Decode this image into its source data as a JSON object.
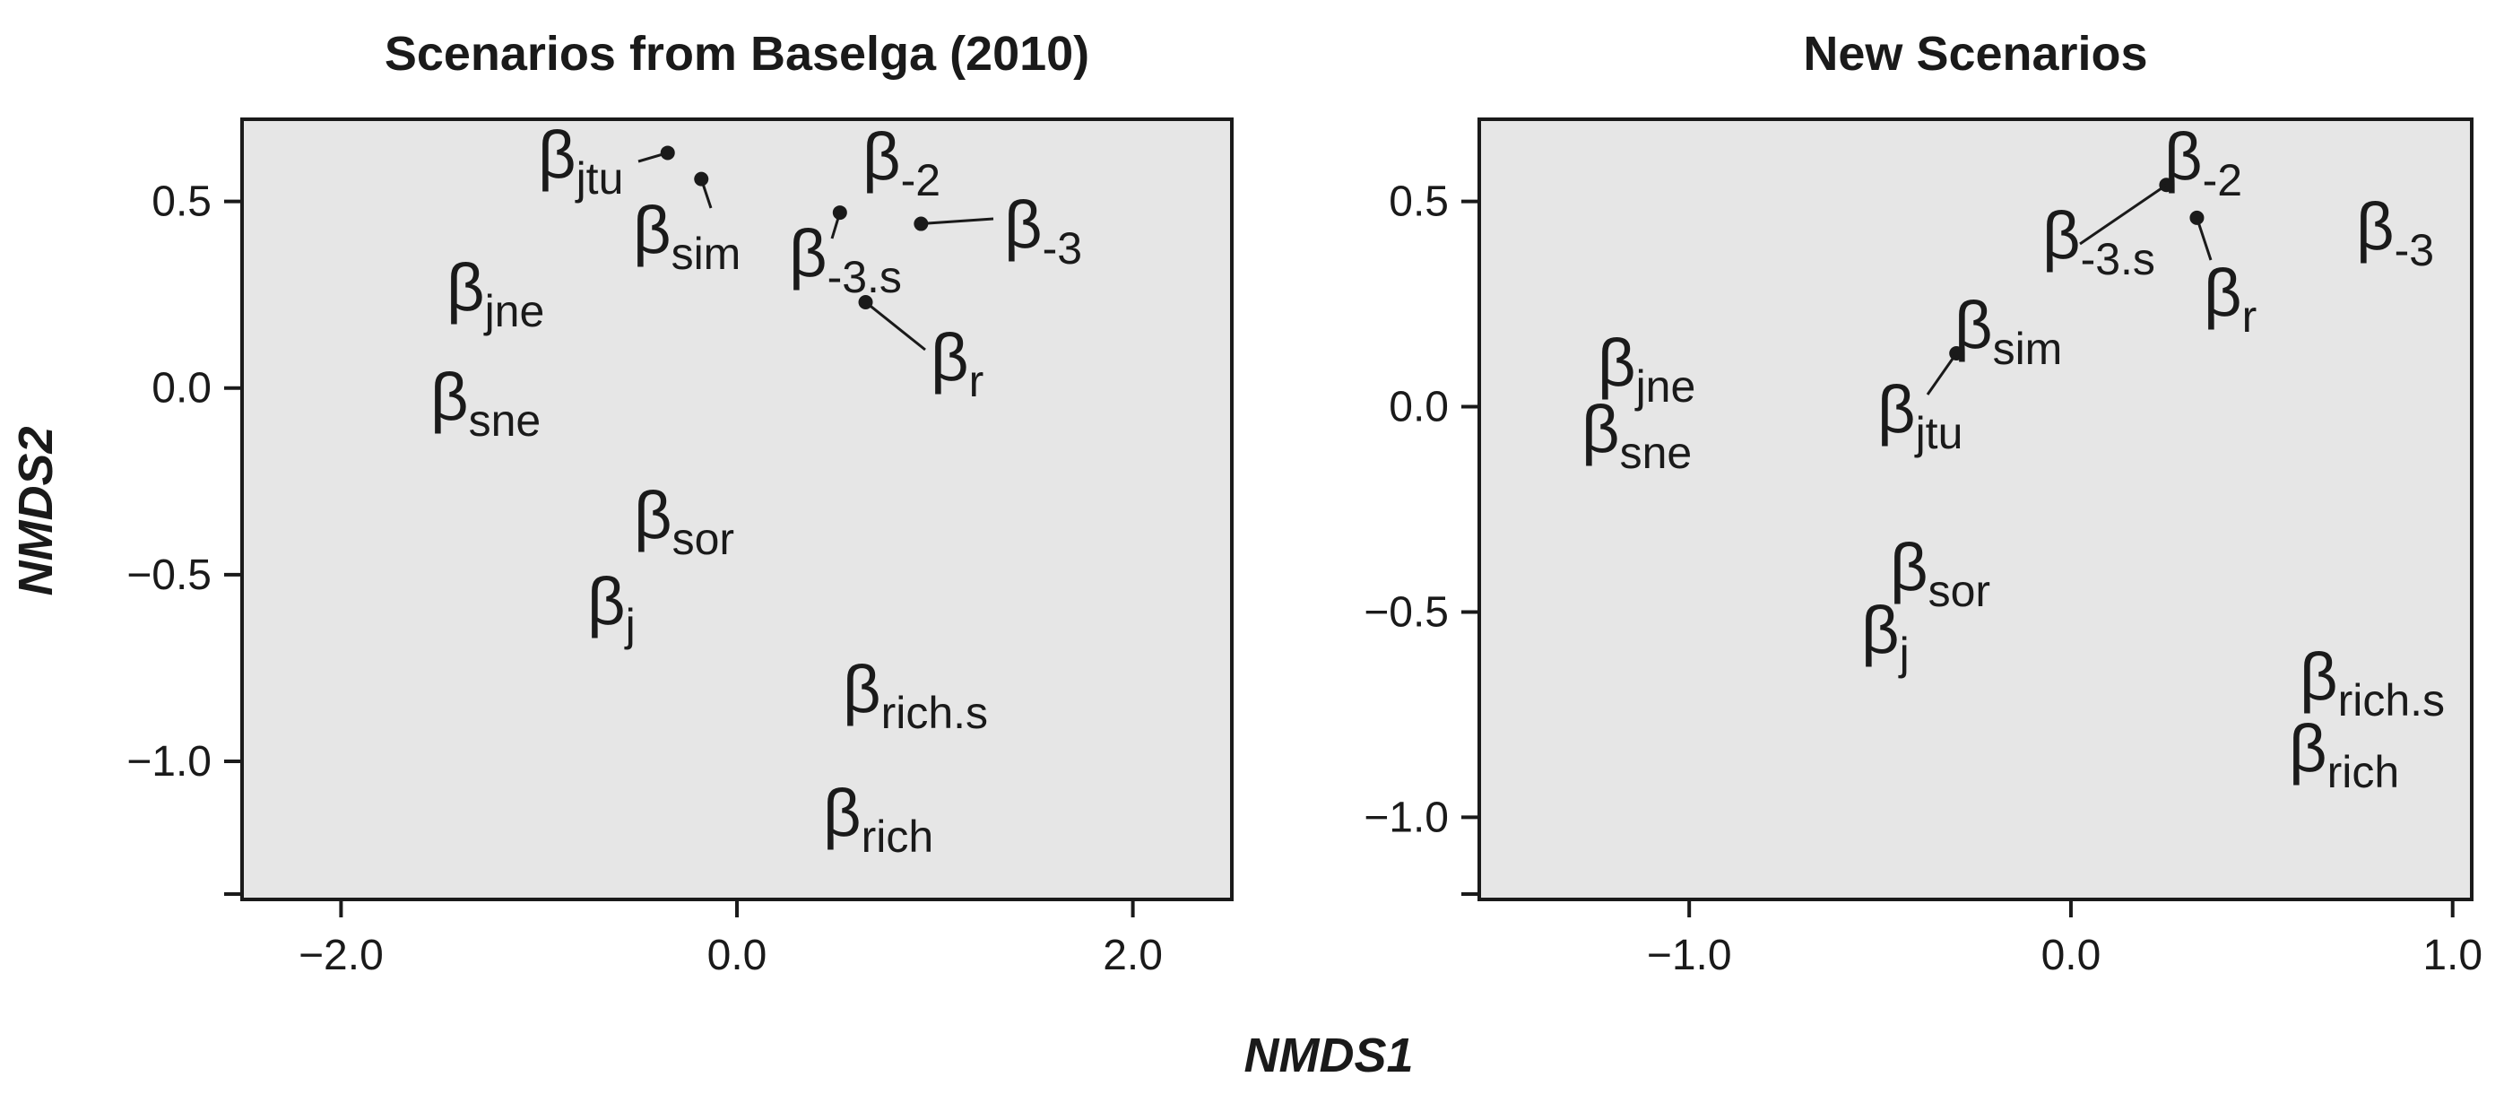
{
  "axis_titles": {
    "x": "NMDS1",
    "y": "NMDS2"
  },
  "chart_data": [
    {
      "type": "scatter",
      "title": "Scenarios from Baselga (2010)",
      "xlabel": "NMDS1",
      "ylabel": "NMDS2",
      "xlim": [
        -2.5,
        2.5
      ],
      "ylim": [
        -1.37,
        0.72
      ],
      "x_ticks": [
        {
          "value": -2.0,
          "label": "−2.0"
        },
        {
          "value": 0.0,
          "label": "0.0"
        },
        {
          "value": 2.0,
          "label": "2.0"
        }
      ],
      "y_ticks": [
        {
          "value": 0.5,
          "label": "0.5"
        },
        {
          "value": 0.0,
          "label": "0.0"
        },
        {
          "value": -0.5,
          "label": "−0.5"
        },
        {
          "value": -1.0,
          "label": "−1.0"
        }
      ],
      "grid": false,
      "points": [
        {
          "symbol": "β",
          "sub": "jtu",
          "x": -0.35,
          "y": 0.63
        },
        {
          "symbol": "β",
          "sub": "sim",
          "x": -0.18,
          "y": 0.56
        },
        {
          "symbol": "β",
          "sub": "-2",
          "x": 0.52,
          "y": 0.47
        },
        {
          "symbol": "β",
          "sub": "-3",
          "x": 0.93,
          "y": 0.44
        },
        {
          "symbol": "β",
          "sub": "-3.s",
          "x": 0.52,
          "y": 0.47
        },
        {
          "symbol": "β",
          "sub": "jne",
          "x": -1.5,
          "y": 0.22
        },
        {
          "symbol": "β",
          "sub": "r",
          "x": 0.65,
          "y": 0.23
        },
        {
          "symbol": "β",
          "sub": "sne",
          "x": -1.55,
          "y": -0.05
        },
        {
          "symbol": "β",
          "sub": "sor",
          "x": -0.6,
          "y": -0.4
        },
        {
          "symbol": "β",
          "sub": "j",
          "x": -0.85,
          "y": -0.6
        },
        {
          "symbol": "β",
          "sub": "rich.s",
          "x": 0.45,
          "y": -0.85
        },
        {
          "symbol": "β",
          "sub": "rich",
          "x": 0.35,
          "y": -1.18
        }
      ]
    },
    {
      "type": "scatter",
      "title": "New Scenarios",
      "xlabel": "NMDS1",
      "ylabel": "NMDS2",
      "xlim": [
        -1.55,
        1.05
      ],
      "ylim": [
        -1.2,
        0.7
      ],
      "x_ticks": [
        {
          "value": -1.0,
          "label": "−1.0"
        },
        {
          "value": 0.0,
          "label": "0.0"
        },
        {
          "value": 1.0,
          "label": "1.0"
        }
      ],
      "y_ticks": [
        {
          "value": 0.5,
          "label": "0.5"
        },
        {
          "value": 0.0,
          "label": "0.0"
        },
        {
          "value": -0.5,
          "label": "−0.5"
        },
        {
          "value": -1.0,
          "label": "−1.0"
        }
      ],
      "grid": false,
      "points": [
        {
          "symbol": "β",
          "sub": "-2",
          "x": 0.25,
          "y": 0.54
        },
        {
          "symbol": "β",
          "sub": "-3.s",
          "x": 0.25,
          "y": 0.54
        },
        {
          "symbol": "β",
          "sub": "r",
          "x": 0.33,
          "y": 0.46
        },
        {
          "symbol": "β",
          "sub": "-3",
          "x": 0.85,
          "y": 0.43
        },
        {
          "symbol": "β",
          "sub": "sim",
          "x": -0.3,
          "y": 0.13
        },
        {
          "symbol": "β",
          "sub": "jtu",
          "x": -0.3,
          "y": 0.13
        },
        {
          "symbol": "β",
          "sub": "jne",
          "x": -1.1,
          "y": 0.08
        },
        {
          "symbol": "β",
          "sub": "sne",
          "x": -1.15,
          "y": -0.05
        },
        {
          "symbol": "β",
          "sub": "sor",
          "x": -0.4,
          "y": -0.4
        },
        {
          "symbol": "β",
          "sub": "j",
          "x": -0.5,
          "y": -0.55
        },
        {
          "symbol": "β",
          "sub": "rich.s",
          "x": 0.8,
          "y": -0.67
        },
        {
          "symbol": "β",
          "sub": "rich",
          "x": 0.75,
          "y": -0.85
        }
      ]
    }
  ]
}
